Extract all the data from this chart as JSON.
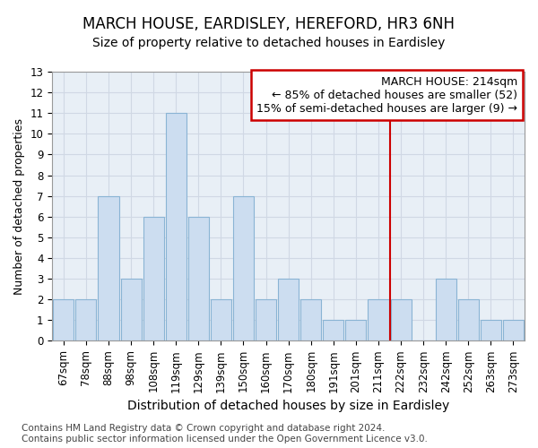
{
  "title": "MARCH HOUSE, EARDISLEY, HEREFORD, HR3 6NH",
  "subtitle": "Size of property relative to detached houses in Eardisley",
  "xlabel": "Distribution of detached houses by size in Eardisley",
  "ylabel": "Number of detached properties",
  "categories": [
    "67sqm",
    "78sqm",
    "88sqm",
    "98sqm",
    "108sqm",
    "119sqm",
    "129sqm",
    "139sqm",
    "150sqm",
    "160sqm",
    "170sqm",
    "180sqm",
    "191sqm",
    "201sqm",
    "211sqm",
    "222sqm",
    "232sqm",
    "242sqm",
    "252sqm",
    "263sqm",
    "273sqm"
  ],
  "values": [
    2,
    2,
    7,
    3,
    6,
    11,
    6,
    2,
    7,
    2,
    3,
    2,
    1,
    1,
    2,
    2,
    0,
    3,
    2,
    1,
    1
  ],
  "ylim": [
    0,
    13
  ],
  "yticks": [
    0,
    1,
    2,
    3,
    4,
    5,
    6,
    7,
    8,
    9,
    10,
    11,
    12,
    13
  ],
  "bar_color": "#ccddf0",
  "bar_edge_color": "#8ab4d4",
  "grid_color": "#d0d8e4",
  "vline_x_idx": 14,
  "vline_color": "#cc0000",
  "annotation_text": "MARCH HOUSE: 214sqm\n← 85% of detached houses are smaller (52)\n15% of semi-detached houses are larger (9) →",
  "footer_line1": "Contains HM Land Registry data © Crown copyright and database right 2024.",
  "footer_line2": "Contains public sector information licensed under the Open Government Licence v3.0.",
  "bg_color": "#e8eff6",
  "title_fontsize": 12,
  "subtitle_fontsize": 10,
  "xlabel_fontsize": 10,
  "ylabel_fontsize": 9,
  "tick_fontsize": 8.5,
  "annotation_fontsize": 9,
  "footer_fontsize": 7.5
}
